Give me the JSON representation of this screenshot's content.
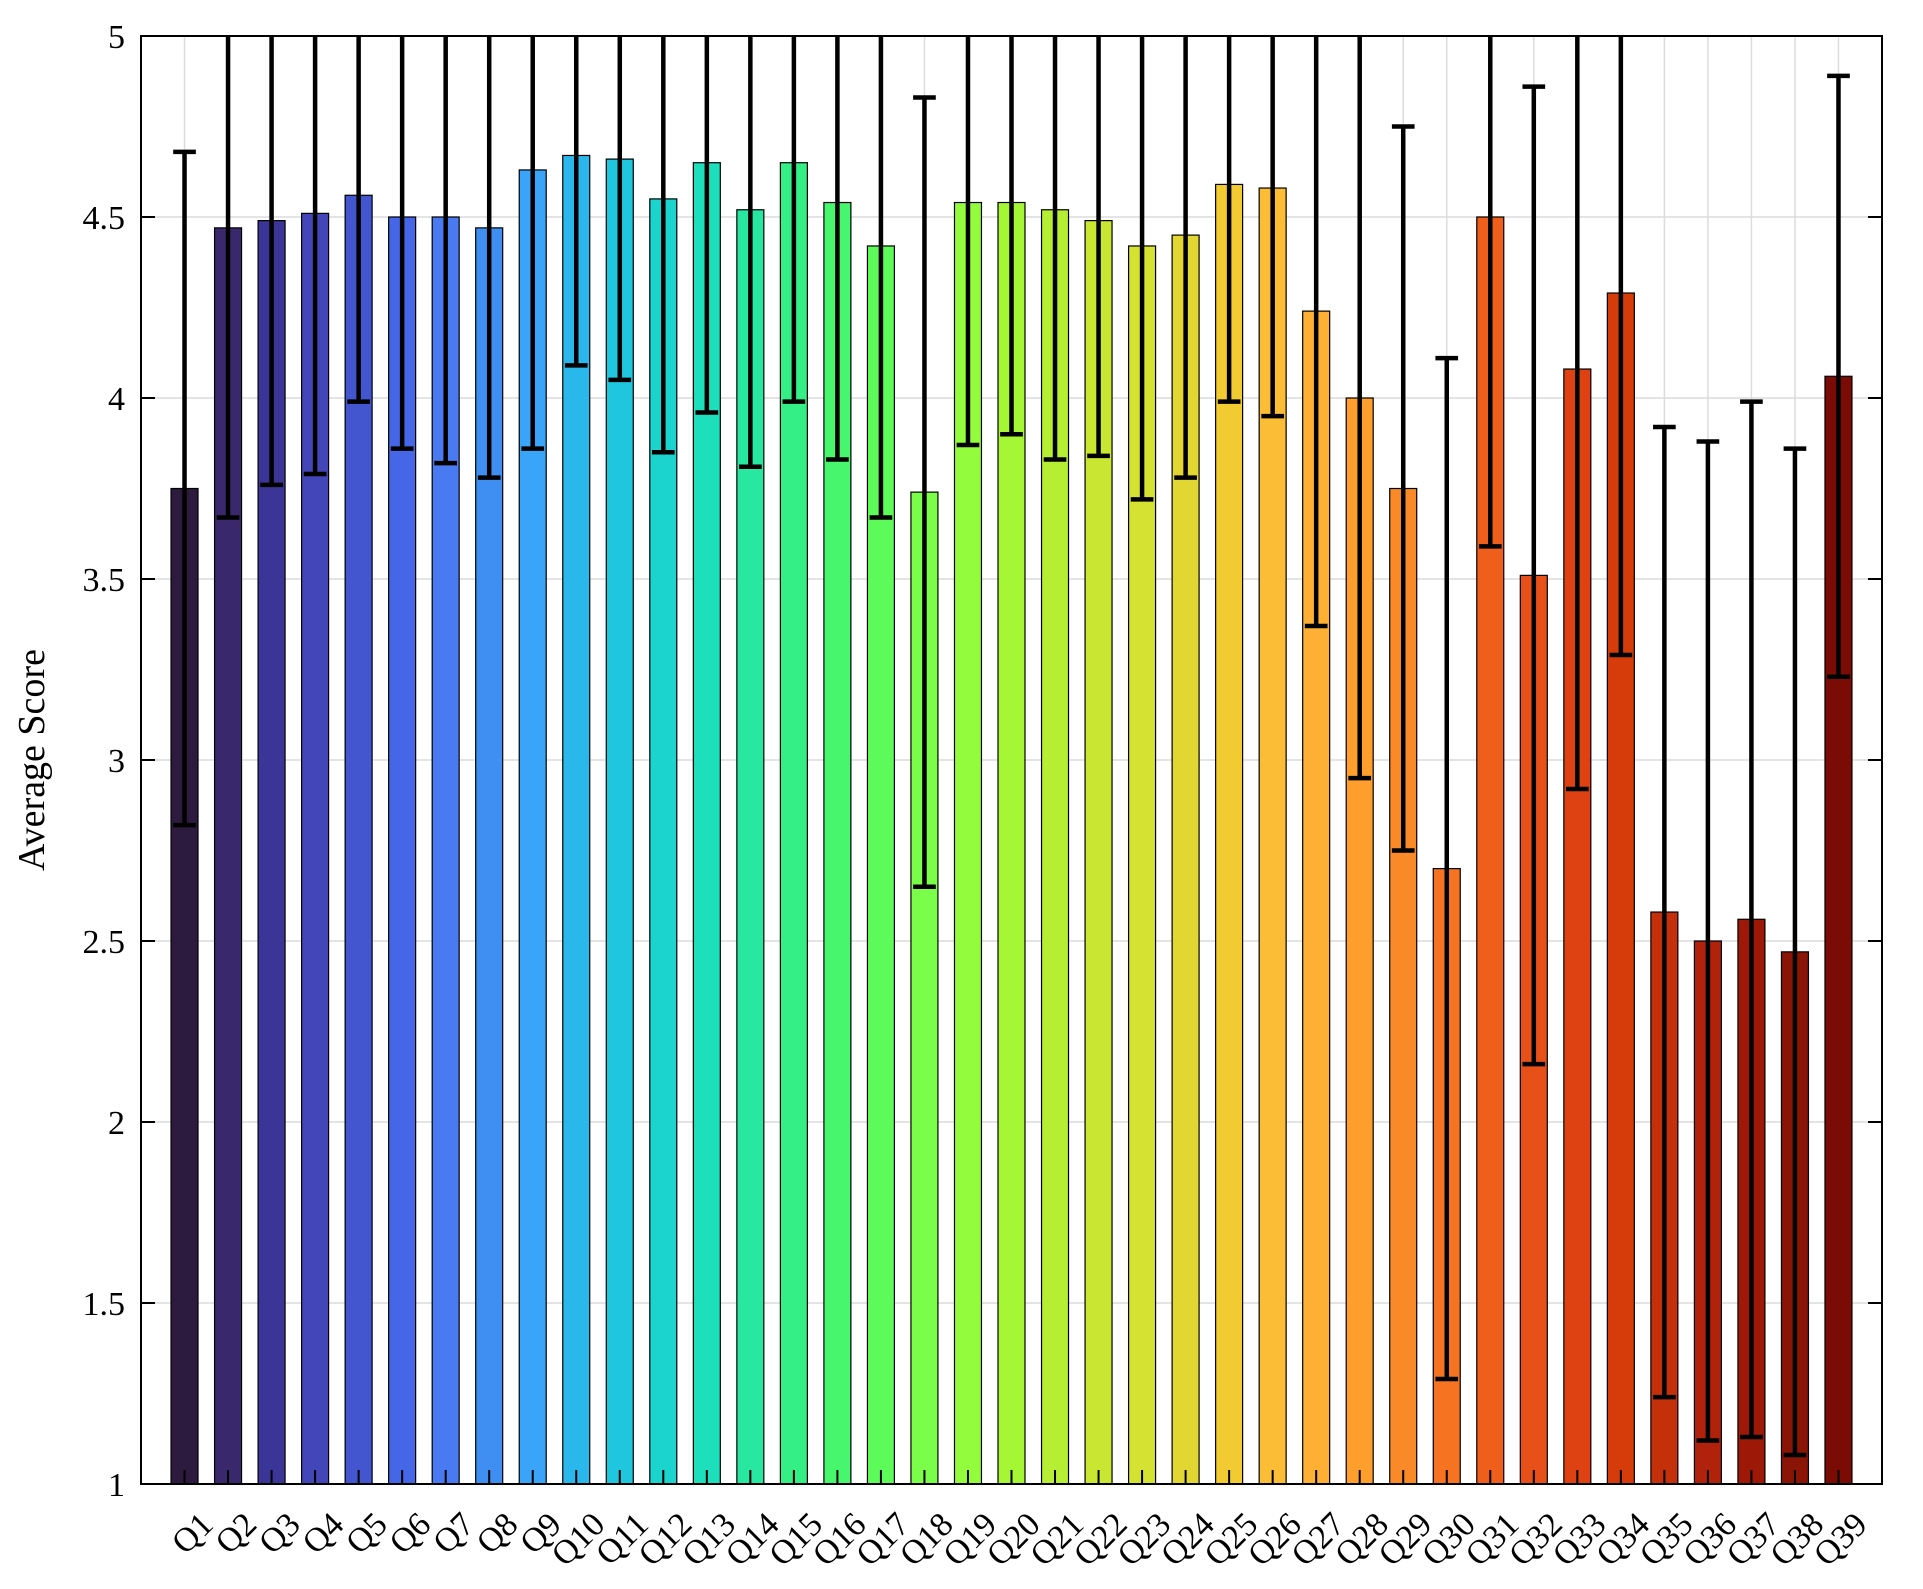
{
  "chart_data": {
    "type": "bar",
    "title": "",
    "xlabel": "",
    "ylabel": "Average Score",
    "ylim": [
      1,
      5
    ],
    "yticks": [
      "1",
      "1.5",
      "2",
      "2.5",
      "3",
      "3.5",
      "4",
      "4.5",
      "5"
    ],
    "grid": true,
    "legend": "none",
    "categories": [
      "Q1",
      "Q2",
      "Q3",
      "Q4",
      "Q5",
      "Q6",
      "Q7",
      "Q8",
      "Q9",
      "Q10",
      "Q11",
      "Q12",
      "Q13",
      "Q14",
      "Q15",
      "Q16",
      "Q17",
      "Q18",
      "Q19",
      "Q20",
      "Q21",
      "Q22",
      "Q23",
      "Q24",
      "Q25",
      "Q26",
      "Q27",
      "Q28",
      "Q29",
      "Q30",
      "Q31",
      "Q32",
      "Q33",
      "Q34",
      "Q35",
      "Q36",
      "Q37",
      "Q38",
      "Q39"
    ],
    "values": [
      3.75,
      4.47,
      4.49,
      4.51,
      4.56,
      4.5,
      4.5,
      4.47,
      4.63,
      4.67,
      4.66,
      4.55,
      4.65,
      4.52,
      4.65,
      4.54,
      4.42,
      3.74,
      4.54,
      4.54,
      4.52,
      4.49,
      4.42,
      4.45,
      4.59,
      4.58,
      4.24,
      4.0,
      3.75,
      2.7,
      4.5,
      3.51,
      4.08,
      4.29,
      2.58,
      2.5,
      2.56,
      2.47,
      4.06
    ],
    "error": [
      0.93,
      0.8,
      0.73,
      0.72,
      0.57,
      0.64,
      0.68,
      0.69,
      0.77,
      0.58,
      0.61,
      0.7,
      0.69,
      0.71,
      0.66,
      0.71,
      0.75,
      1.09,
      0.67,
      0.64,
      0.69,
      0.65,
      0.7,
      0.67,
      0.6,
      0.63,
      0.87,
      1.05,
      1.0,
      1.41,
      0.91,
      1.35,
      1.16,
      1.0,
      1.34,
      1.38,
      1.43,
      1.39,
      0.83
    ],
    "colors": [
      "#2d1b3f",
      "#3a286c",
      "#3c3598",
      "#4346b8",
      "#4356cf",
      "#4666e8",
      "#4a7af2",
      "#3f8ff3",
      "#39a4f8",
      "#2ab8ec",
      "#20c6de",
      "#1bd4cd",
      "#1ddfbb",
      "#27e7a1",
      "#34ef85",
      "#48f66d",
      "#5dfb59",
      "#7bfe4a",
      "#93fd3d",
      "#a5f735",
      "#b6ee33",
      "#c8e632",
      "#d6e232",
      "#e2d632",
      "#f1cb31",
      "#fbbd36",
      "#fdb034",
      "#fe9e2d",
      "#fa8928",
      "#f57321",
      "#ef5f1b",
      "#e8501a",
      "#de4212",
      "#d63c0a",
      "#c4300a",
      "#b0220b",
      "#9e1808",
      "#8a1406",
      "#7a0c05"
    ]
  }
}
